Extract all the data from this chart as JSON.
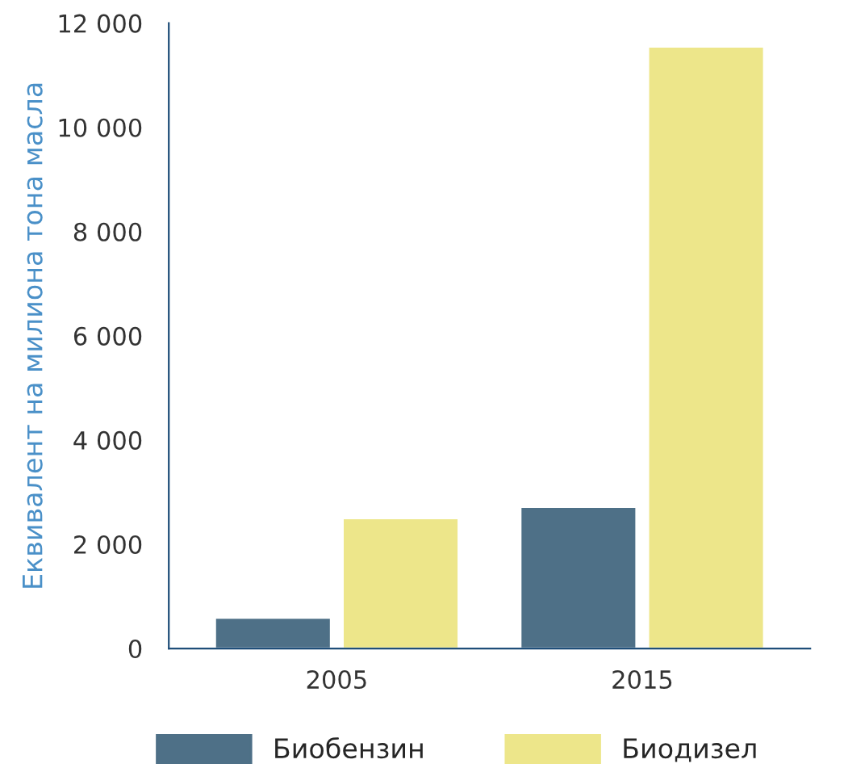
{
  "chart_data": {
    "type": "bar",
    "ylabel": "Еквивалент на милиона тона масла",
    "categories": [
      "2005",
      "2015"
    ],
    "series": [
      {
        "name": "Биобензин",
        "color": "#4e7087",
        "values": [
          590,
          2720
        ]
      },
      {
        "name": "Биодизел",
        "color": "#ede68a",
        "values": [
          2500,
          11550
        ]
      }
    ],
    "ylim": [
      0,
      12000
    ],
    "yticks": [
      {
        "value": 0,
        "label": "0"
      },
      {
        "value": 2000,
        "label": "2 000"
      },
      {
        "value": 4000,
        "label": "4 000"
      },
      {
        "value": 6000,
        "label": "6 000"
      },
      {
        "value": 8000,
        "label": "8 000"
      },
      {
        "value": 10000,
        "label": "10 000"
      },
      {
        "value": 12000,
        "label": "12 000"
      }
    ],
    "grid": false,
    "legend": "bottom"
  }
}
